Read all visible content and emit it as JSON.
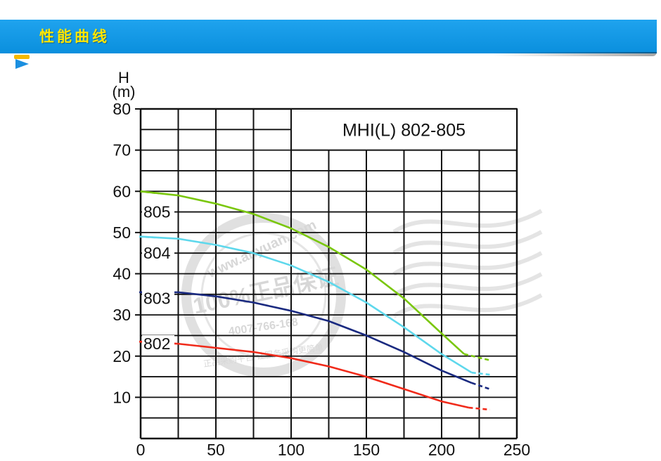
{
  "header": {
    "title": "性能曲线"
  },
  "chart_data": {
    "type": "line",
    "title": "MHI(L) 802-805",
    "xlabel": "",
    "ylabel_lines": [
      "H",
      "(m)"
    ],
    "xlim": [
      0,
      250
    ],
    "ylim": [
      0,
      80
    ],
    "x_ticks": [
      0,
      50,
      100,
      150,
      200,
      250
    ],
    "y_ticks": [
      10,
      20,
      30,
      40,
      50,
      60,
      70,
      80
    ],
    "grid": true,
    "series": [
      {
        "name": "805",
        "color": "#7ac70c",
        "x": [
          0,
          25,
          50,
          75,
          100,
          125,
          150,
          175,
          200,
          215
        ],
        "y": [
          60,
          59,
          57,
          54.5,
          51,
          46.5,
          41,
          34,
          25.5,
          20.5
        ],
        "dash_end": [
          215,
          20.5,
          232,
          19
        ]
      },
      {
        "name": "804",
        "color": "#5ed8ec",
        "x": [
          0,
          25,
          50,
          75,
          100,
          125,
          150,
          175,
          200,
          220
        ],
        "y": [
          49,
          48.5,
          47,
          45,
          42,
          38,
          33,
          27,
          20.5,
          16
        ],
        "dash_end": [
          220,
          16,
          232,
          15.5
        ]
      },
      {
        "name": "803",
        "color": "#1a2a80",
        "x": [
          0,
          25,
          50,
          75,
          100,
          125,
          150,
          175,
          200,
          220
        ],
        "y": [
          35.5,
          35.5,
          34.5,
          33,
          31,
          28.5,
          25,
          21,
          16.5,
          13.5
        ],
        "dash_end": [
          220,
          13.5,
          232,
          12
        ]
      },
      {
        "name": "802",
        "color": "#f02a1a",
        "x": [
          0,
          25,
          50,
          75,
          100,
          125,
          150,
          175,
          200,
          218
        ],
        "y": [
          23.5,
          23,
          22,
          21,
          19.5,
          17.5,
          15,
          12,
          9,
          7.5
        ],
        "dash_end": [
          218,
          7.5,
          232,
          7
        ]
      }
    ]
  },
  "watermark": {
    "line1": "www.anyuan.com",
    "line2": "100%正品保证",
    "line3": "4007-766-168",
    "line4": "正品采购平台·让服务采购更简单"
  }
}
